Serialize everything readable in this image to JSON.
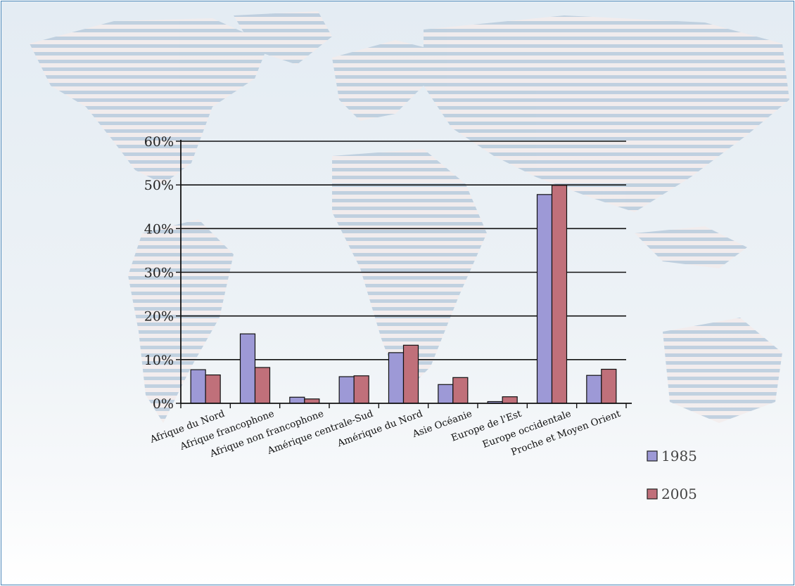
{
  "chart_data": {
    "type": "bar",
    "title": "",
    "xlabel": "",
    "ylabel": "",
    "ylim": [
      0,
      60
    ],
    "y_ticks": [
      "0%",
      "10%",
      "20%",
      "30%",
      "40%",
      "50%",
      "60%"
    ],
    "y_tick_values": [
      0,
      10,
      20,
      30,
      40,
      50,
      60
    ],
    "grid": true,
    "legend_position": "bottom-right",
    "categories": [
      "Afrique du Nord",
      "Afrique francophone",
      "Afrique non francophone",
      "Amérique centrale-Sud",
      "Amérique du Nord",
      "Asie Océanie",
      "Europe de l'Est",
      "Europe occidentale",
      "Proche et Moyen Orient"
    ],
    "series": [
      {
        "name": "1985",
        "color": "#9d99d6",
        "values": [
          7.7,
          15.9,
          1.4,
          6.1,
          11.6,
          4.3,
          0.4,
          47.8,
          6.4
        ]
      },
      {
        "name": "2005",
        "color": "#c0707a",
        "values": [
          6.5,
          8.2,
          1.0,
          6.3,
          13.3,
          5.9,
          1.5,
          49.9,
          7.8
        ]
      }
    ]
  }
}
